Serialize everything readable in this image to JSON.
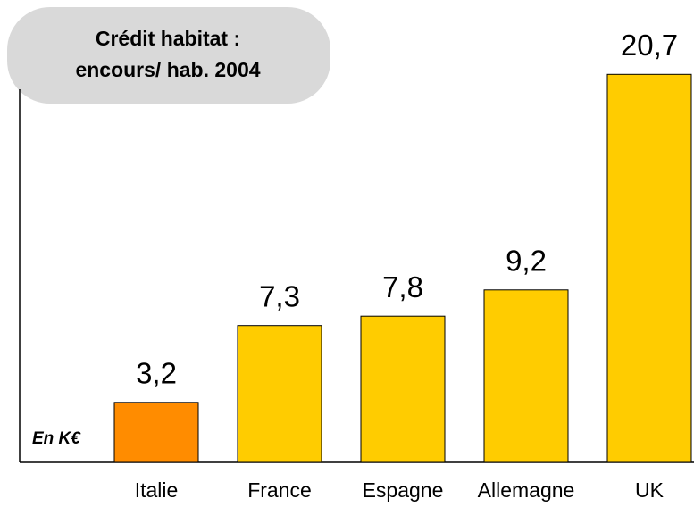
{
  "chart_data": {
    "type": "bar",
    "title": [
      "Crédit habitat  :",
      "encours/ hab. 2004"
    ],
    "unit_note": "En K€",
    "categories": [
      "Italie",
      "France",
      "Espagne",
      "Allemagne",
      "UK"
    ],
    "values": [
      3.2,
      7.3,
      7.8,
      9.2,
      20.7
    ],
    "value_labels": [
      "3,2",
      "7,3",
      "7,8",
      "9,2",
      "20,7"
    ],
    "colors": [
      "#ff8c00",
      "#ffcc00",
      "#ffcc00",
      "#ffcc00",
      "#ffcc00"
    ],
    "ylim": [
      0,
      21
    ]
  }
}
